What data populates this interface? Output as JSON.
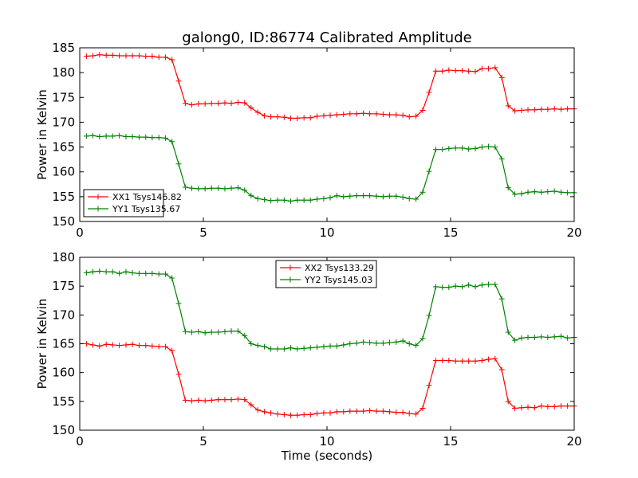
{
  "figure": {
    "title": "galong0, ID:86774 Calibrated Amplitude",
    "xlabel": "Time (seconds)"
  },
  "colors": {
    "red": "#ff0000",
    "green": "#008000"
  },
  "chart_data": [
    {
      "type": "line",
      "ylabel": "Power in Kelvin",
      "xlim": [
        0,
        20
      ],
      "ylim": [
        150,
        185
      ],
      "xticks": [
        "0",
        "5",
        "10",
        "15",
        "20"
      ],
      "yticks": [
        "150",
        "155",
        "160",
        "165",
        "170",
        "175",
        "180",
        "185"
      ],
      "grid": false,
      "legend_position": "lower-left",
      "x": [
        0.27,
        0.53,
        0.8,
        1.07,
        1.33,
        1.6,
        1.87,
        2.13,
        2.4,
        2.67,
        2.93,
        3.2,
        3.47,
        3.73,
        4.0,
        4.27,
        4.53,
        4.8,
        5.07,
        5.33,
        5.6,
        5.87,
        6.13,
        6.4,
        6.67,
        6.93,
        7.2,
        7.47,
        7.73,
        8.0,
        8.27,
        8.53,
        8.8,
        9.07,
        9.33,
        9.6,
        9.87,
        10.13,
        10.4,
        10.67,
        10.93,
        11.2,
        11.47,
        11.73,
        12.0,
        12.27,
        12.53,
        12.8,
        13.07,
        13.33,
        13.6,
        13.87,
        14.13,
        14.4,
        14.67,
        14.93,
        15.2,
        15.47,
        15.73,
        16.0,
        16.27,
        16.53,
        16.8,
        17.07,
        17.33,
        17.6,
        17.87,
        18.13,
        18.4,
        18.67,
        18.93,
        19.2,
        19.47,
        19.73,
        20.0
      ],
      "series": [
        {
          "name": "XX1 Tsys146.82",
          "color": "#ff0000",
          "values": [
            183.3,
            183.4,
            183.6,
            183.5,
            183.5,
            183.4,
            183.4,
            183.4,
            183.4,
            183.3,
            183.3,
            183.1,
            183.1,
            182.6,
            178.3,
            173.8,
            173.5,
            173.7,
            173.7,
            173.8,
            173.8,
            173.9,
            173.8,
            174.0,
            173.9,
            172.9,
            172.0,
            171.3,
            171.1,
            171.1,
            171.0,
            170.8,
            170.8,
            170.9,
            170.9,
            171.2,
            171.3,
            171.4,
            171.5,
            171.6,
            171.7,
            171.7,
            171.8,
            171.7,
            171.7,
            171.6,
            171.5,
            171.5,
            171.4,
            171.1,
            171.2,
            172.4,
            176.0,
            180.3,
            180.3,
            180.5,
            180.4,
            180.4,
            180.3,
            180.2,
            180.8,
            180.8,
            181.0,
            179.0,
            173.3,
            172.3,
            172.4,
            172.5,
            172.5,
            172.6,
            172.6,
            172.7,
            172.6,
            172.7,
            172.7
          ]
        },
        {
          "name": "YY1 Tsys135.67",
          "color": "#008000",
          "values": [
            167.2,
            167.3,
            167.1,
            167.2,
            167.2,
            167.3,
            167.1,
            167.1,
            167.0,
            167.0,
            166.9,
            166.9,
            166.8,
            166.1,
            161.6,
            156.9,
            156.7,
            156.6,
            156.6,
            156.7,
            156.7,
            156.6,
            156.7,
            156.8,
            156.3,
            155.2,
            154.6,
            154.4,
            154.2,
            154.3,
            154.3,
            154.1,
            154.3,
            154.3,
            154.3,
            154.5,
            154.6,
            154.8,
            155.2,
            155.0,
            155.1,
            155.2,
            155.2,
            155.2,
            155.1,
            155.0,
            155.1,
            155.1,
            154.9,
            154.6,
            154.5,
            155.9,
            160.1,
            164.5,
            164.5,
            164.7,
            164.8,
            164.8,
            164.6,
            164.7,
            165.0,
            165.1,
            165.0,
            162.6,
            156.8,
            155.5,
            155.6,
            155.9,
            156.0,
            155.9,
            156.0,
            156.1,
            155.9,
            155.8,
            155.8
          ]
        }
      ]
    },
    {
      "type": "line",
      "ylabel": "Power in Kelvin",
      "xlim": [
        0,
        20
      ],
      "ylim": [
        150,
        180
      ],
      "xticks": [
        "0",
        "5",
        "10",
        "15",
        "20"
      ],
      "yticks": [
        "150",
        "155",
        "160",
        "165",
        "170",
        "175",
        "180"
      ],
      "grid": false,
      "legend_position": "top-center",
      "x": [
        0.27,
        0.53,
        0.8,
        1.07,
        1.33,
        1.6,
        1.87,
        2.13,
        2.4,
        2.67,
        2.93,
        3.2,
        3.47,
        3.73,
        4.0,
        4.27,
        4.53,
        4.8,
        5.07,
        5.33,
        5.6,
        5.87,
        6.13,
        6.4,
        6.67,
        6.93,
        7.2,
        7.47,
        7.73,
        8.0,
        8.27,
        8.53,
        8.8,
        9.07,
        9.33,
        9.6,
        9.87,
        10.13,
        10.4,
        10.67,
        10.93,
        11.2,
        11.47,
        11.73,
        12.0,
        12.27,
        12.53,
        12.8,
        13.07,
        13.33,
        13.6,
        13.87,
        14.13,
        14.4,
        14.67,
        14.93,
        15.2,
        15.47,
        15.73,
        16.0,
        16.27,
        16.53,
        16.8,
        17.07,
        17.33,
        17.6,
        17.87,
        18.13,
        18.4,
        18.67,
        18.93,
        19.2,
        19.47,
        19.73,
        20.0
      ],
      "series": [
        {
          "name": "XX2 Tsys133.29",
          "color": "#ff0000",
          "values": [
            165.0,
            164.8,
            164.6,
            164.9,
            164.8,
            164.7,
            164.8,
            164.9,
            164.7,
            164.7,
            164.6,
            164.5,
            164.5,
            163.8,
            159.7,
            155.2,
            155.1,
            155.2,
            155.1,
            155.2,
            155.3,
            155.3,
            155.3,
            155.4,
            155.3,
            154.4,
            153.5,
            153.2,
            153.0,
            152.8,
            152.7,
            152.6,
            152.6,
            152.7,
            152.7,
            152.9,
            153.0,
            153.0,
            153.2,
            153.2,
            153.3,
            153.3,
            153.3,
            153.4,
            153.3,
            153.3,
            153.2,
            153.1,
            153.1,
            152.9,
            152.8,
            153.8,
            157.8,
            162.1,
            162.1,
            162.1,
            162.0,
            162.0,
            162.0,
            162.0,
            162.1,
            162.3,
            162.4,
            160.5,
            155.0,
            153.8,
            153.9,
            154.0,
            153.9,
            154.2,
            154.1,
            154.1,
            154.2,
            154.2,
            154.2
          ]
        },
        {
          "name": "YY2 Tsys145.03",
          "color": "#008000",
          "values": [
            177.3,
            177.5,
            177.6,
            177.5,
            177.5,
            177.2,
            177.5,
            177.3,
            177.2,
            177.2,
            177.2,
            177.1,
            177.1,
            176.4,
            172.0,
            167.1,
            167.0,
            167.1,
            166.9,
            167.0,
            167.0,
            167.1,
            167.2,
            167.2,
            166.4,
            165.0,
            164.7,
            164.5,
            164.1,
            164.1,
            164.1,
            164.3,
            164.1,
            164.2,
            164.3,
            164.4,
            164.5,
            164.6,
            164.6,
            164.8,
            165.0,
            165.1,
            165.3,
            165.2,
            165.1,
            165.1,
            165.2,
            165.3,
            165.5,
            165.0,
            164.7,
            165.9,
            169.9,
            174.9,
            174.8,
            174.8,
            175.0,
            174.9,
            175.2,
            174.9,
            175.2,
            175.3,
            175.3,
            172.8,
            167.0,
            165.6,
            166.0,
            166.1,
            166.1,
            166.2,
            166.1,
            166.2,
            166.3,
            166.0,
            166.1
          ]
        }
      ]
    }
  ]
}
